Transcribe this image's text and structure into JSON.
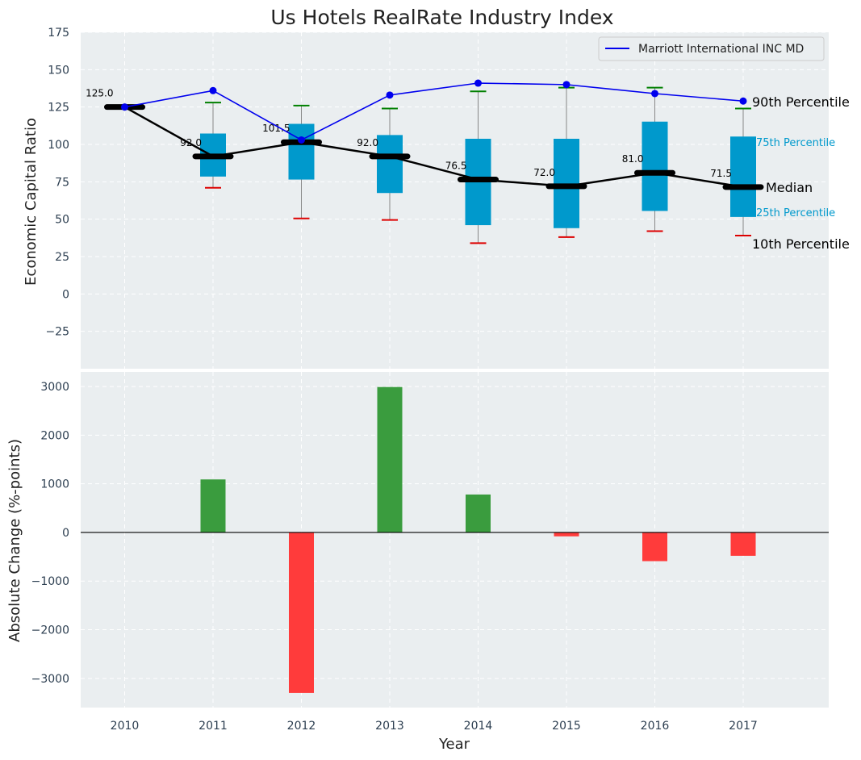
{
  "chart_data": [
    {
      "type": "box",
      "title": "Us Hotels RealRate Industry Index",
      "ylabel": "Economic Capital Ratio",
      "ylim": [
        -50,
        175
      ],
      "yticks": [
        -25,
        0,
        25,
        50,
        75,
        100,
        125,
        150,
        175
      ],
      "ytick_labels": [
        "−25",
        "0",
        "25",
        "50",
        "75",
        "100",
        "125",
        "150",
        "175"
      ],
      "grid": true,
      "years": [
        "2010",
        "2011",
        "2012",
        "2013",
        "2014",
        "2015",
        "2016",
        "2017"
      ],
      "p10": [
        125,
        71,
        50.5,
        49.5,
        34,
        38,
        42,
        39
      ],
      "p25": [
        125,
        78.5,
        76.5,
        67.5,
        46,
        44,
        55.5,
        51.5
      ],
      "median": [
        125,
        92,
        101.5,
        92,
        76.5,
        72,
        81,
        71.5
      ],
      "median_labels": [
        "125.0",
        "92.0",
        "101.5",
        "92.0",
        "76.5",
        "72.0",
        "81.0",
        "71.5"
      ],
      "p75": [
        125,
        107,
        113.5,
        106,
        103.5,
        103.5,
        115,
        105
      ],
      "p90": [
        125,
        128,
        126,
        124,
        135.5,
        138,
        138,
        124
      ],
      "series": [
        {
          "name": "Marriott International INC MD",
          "values": [
            125,
            136,
            103,
            133,
            141,
            140,
            134,
            129
          ]
        }
      ],
      "percentile_labels": {
        "p90": "90th Percentile",
        "p75": "75th Percentile",
        "median": "Median",
        "p25": "25th Percentile",
        "p10": "10th Percentile"
      },
      "legend_position": "top-right",
      "colors": {
        "box": "#0099cc",
        "company_line": "#0000ee",
        "median_line": "#000000",
        "whisker_top": "#008000",
        "whisker_bottom": "#dd0000",
        "background": "#eaeef0",
        "grid": "#ffffff"
      }
    },
    {
      "type": "bar",
      "ylabel": "Absolute Change (%-points)",
      "xlabel": "Year",
      "ylim": [
        -3600,
        3300
      ],
      "yticks": [
        -3000,
        -2000,
        -1000,
        0,
        1000,
        2000,
        3000
      ],
      "ytick_labels": [
        "−3000",
        "−2000",
        "−1000",
        "0",
        "1000",
        "2000",
        "3000"
      ],
      "categories": [
        "2010",
        "2011",
        "2012",
        "2013",
        "2014",
        "2015",
        "2016",
        "2017"
      ],
      "values": [
        0,
        1090,
        -3300,
        2990,
        780,
        -80,
        -590,
        -480
      ],
      "grid": true,
      "colors": {
        "positive": "#3a9c3e",
        "negative": "#ff3b3b"
      }
    }
  ]
}
